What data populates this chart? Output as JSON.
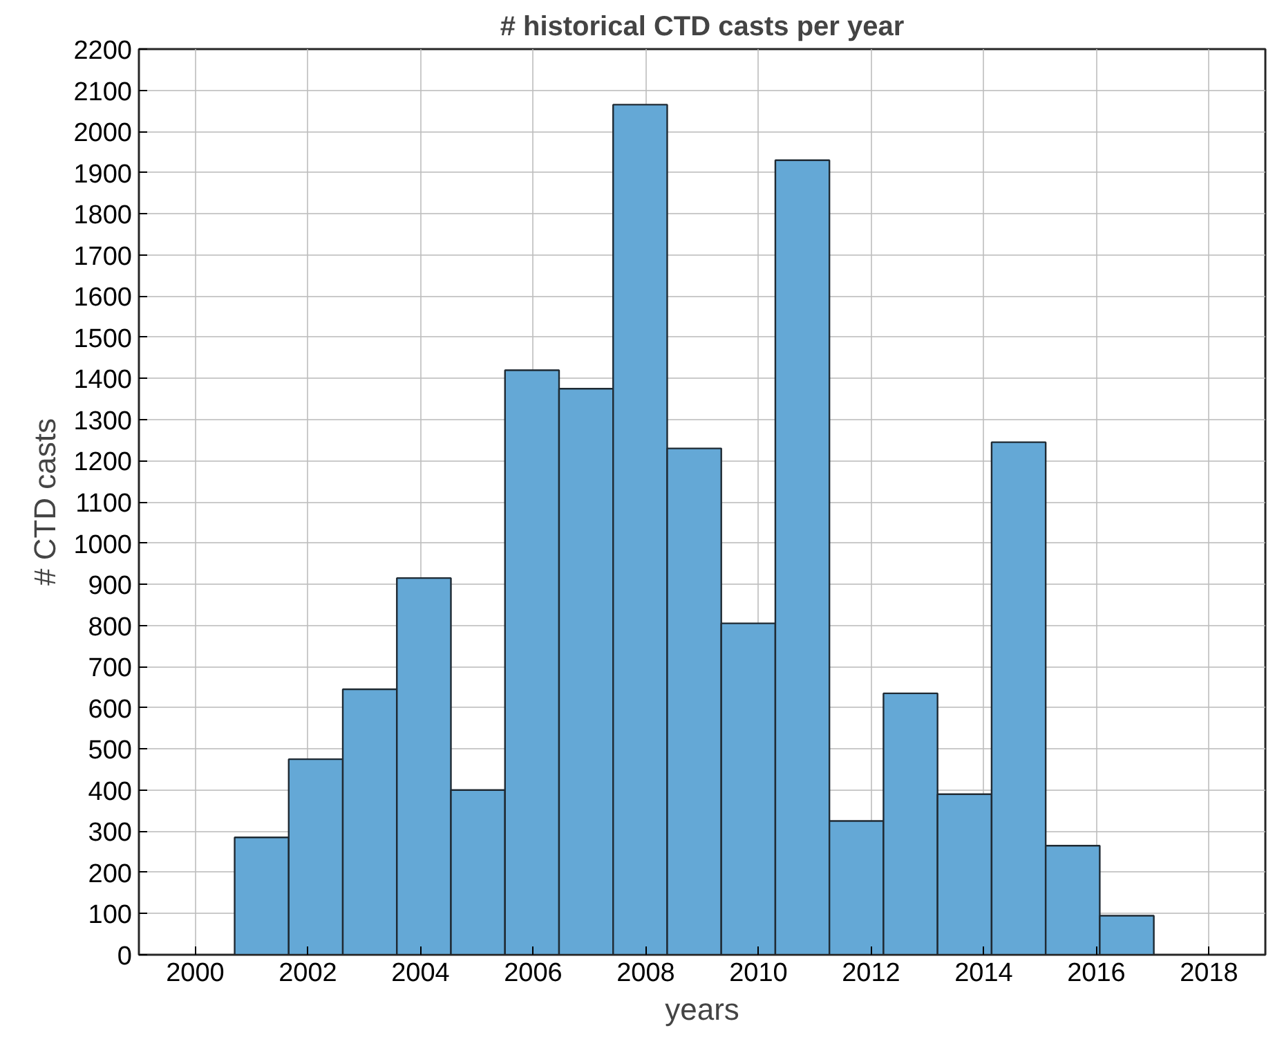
{
  "chart_data": {
    "type": "histogram",
    "title": "# historical CTD casts per year",
    "xlabel": "years",
    "ylabel": "# CTD casts",
    "bins": [
      2000.7,
      2001.66,
      2002.62,
      2003.58,
      2004.54,
      2005.5,
      2006.46,
      2007.42,
      2008.38,
      2009.34,
      2010.3,
      2011.26,
      2012.22,
      2013.18,
      2014.14,
      2015.1,
      2016.06,
      2017.02
    ],
    "values": [
      285,
      475,
      645,
      915,
      400,
      1420,
      1375,
      2065,
      1230,
      805,
      1930,
      325,
      635,
      390,
      1245,
      265,
      95
    ],
    "color": "#64a8d6",
    "xlim": [
      1999,
      2019
    ],
    "xticks": [
      2000,
      2002,
      2004,
      2006,
      2008,
      2010,
      2012,
      2014,
      2016,
      2018
    ],
    "ylim": [
      0,
      2200
    ],
    "yticks": [
      0,
      100,
      200,
      300,
      400,
      500,
      600,
      700,
      800,
      900,
      1000,
      1100,
      1200,
      1300,
      1400,
      1500,
      1600,
      1700,
      1800,
      1900,
      2000,
      2100,
      2200
    ],
    "grid": true
  }
}
